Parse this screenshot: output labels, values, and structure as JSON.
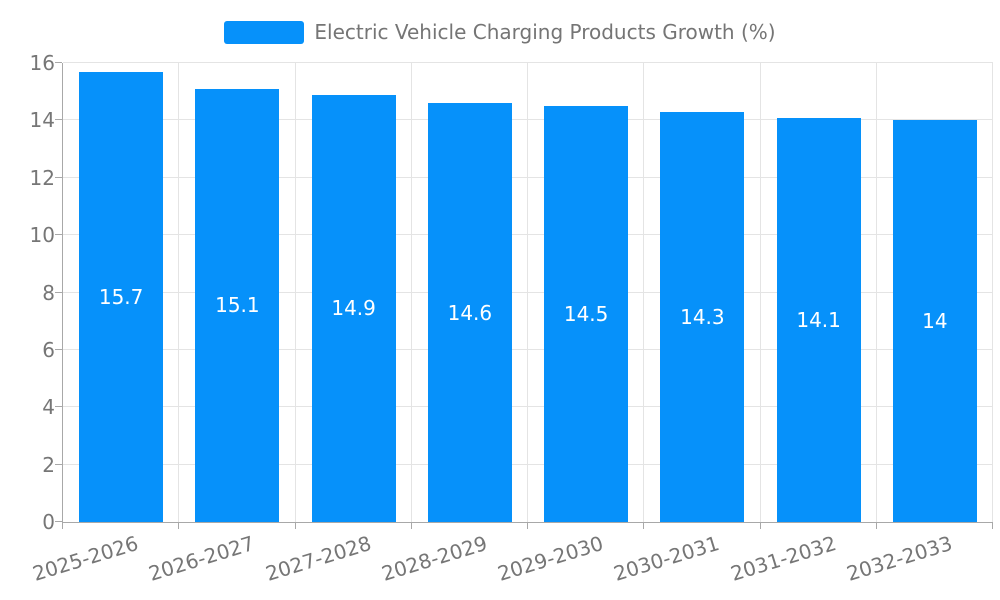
{
  "chart_data": {
    "type": "bar",
    "title": "Electric Vehicle Charging Products Growth (%)",
    "series_name": "Electric Vehicle Charging Products Growth (%)",
    "categories": [
      "2025-2026",
      "2026-2027",
      "2027-2028",
      "2028-2029",
      "2029-2030",
      "2030-2031",
      "2031-2032",
      "2032-2033"
    ],
    "values": [
      15.7,
      15.1,
      14.9,
      14.6,
      14.5,
      14.3,
      14.1,
      14
    ],
    "xlabel": "",
    "ylabel": "",
    "ylim": [
      0,
      16
    ],
    "y_ticks": [
      0,
      2,
      4,
      6,
      8,
      10,
      12,
      14,
      16
    ],
    "grid": true,
    "legend_position": "top-center",
    "colors": {
      "bar": "#0691fa",
      "bar_value_text": "#ffffff",
      "axis_text": "#767676",
      "legend_text": "#757575",
      "gridline": "#e4e4e4",
      "axis_line": "#a8a8a8",
      "background": "#ffffff"
    }
  }
}
